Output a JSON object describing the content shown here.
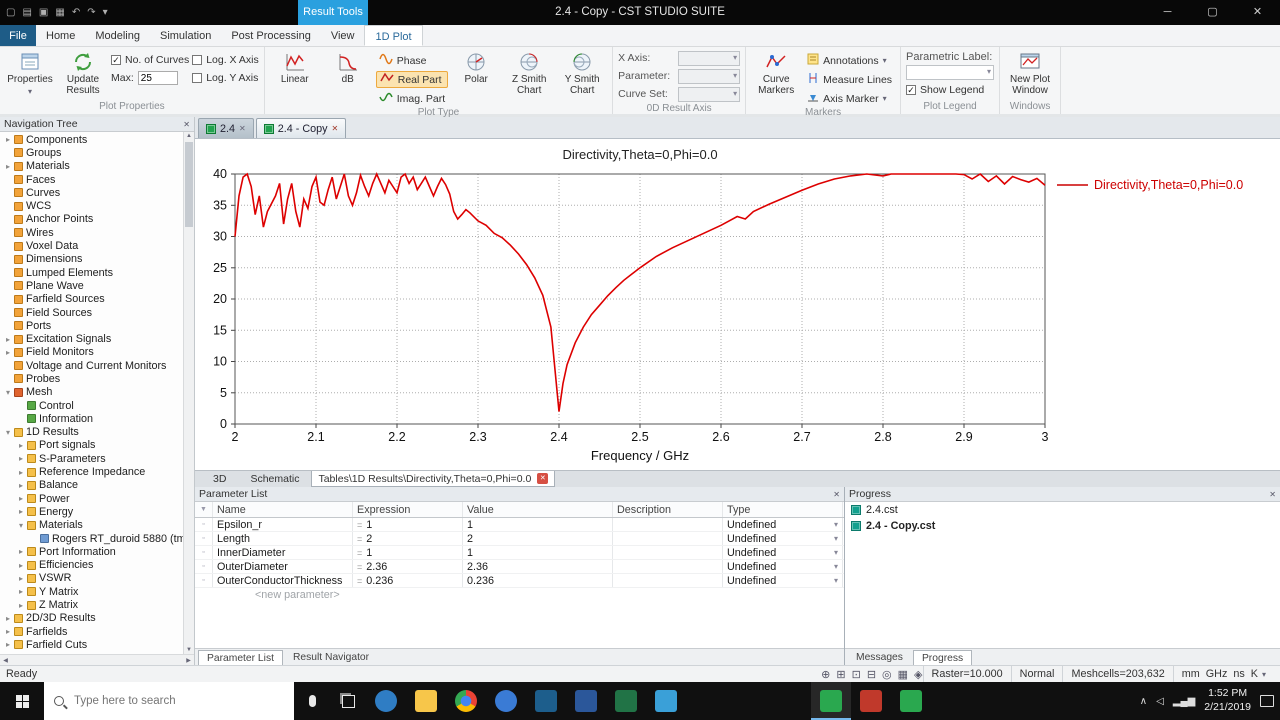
{
  "titlebar": {
    "context_tab": "Result Tools",
    "title": "2.4 - Copy - CST STUDIO SUITE"
  },
  "ribbon": {
    "tabs": [
      "File",
      "Home",
      "Modeling",
      "Simulation",
      "Post Processing",
      "View",
      "1D Plot"
    ],
    "active_tab": "1D Plot",
    "groups": {
      "plot_properties": {
        "label": "Plot Properties",
        "properties": "Properties",
        "update_results": "Update Results",
        "no_of_curves": "No. of Curves",
        "max": "Max:",
        "max_value": "25",
        "log_x": "Log. X Axis",
        "log_y": "Log. Y Axis"
      },
      "plot_type": {
        "label": "Plot Type",
        "linear": "Linear",
        "db": "dB",
        "phase": "Phase",
        "real_part": "Real Part",
        "imag_part": "Imag. Part",
        "polar": "Polar",
        "z_smith": "Z Smith Chart",
        "y_smith": "Y Smith Chart"
      },
      "result_axis": {
        "label": "0D Result Axis",
        "x_axis": "X Axis:",
        "parameter": "Parameter:",
        "curve_set": "Curve Set:"
      },
      "markers": {
        "label": "Markers",
        "curve_markers": "Curve Markers",
        "annotations": "Annotations",
        "measure_lines": "Measure Lines",
        "axis_marker": "Axis Marker"
      },
      "plot_legend": {
        "label": "Plot Legend",
        "parametric_label": "Parametric Label:",
        "show_legend": "Show Legend"
      },
      "windows": {
        "label": "Windows",
        "new_plot_window": "New Plot Window"
      }
    }
  },
  "navigation_tree": {
    "title": "Navigation Tree",
    "items": [
      {
        "label": "Components",
        "level": 0,
        "state": "collapsed",
        "icon": "cube"
      },
      {
        "label": "Groups",
        "level": 0,
        "state": "none",
        "icon": "cube"
      },
      {
        "label": "Materials",
        "level": 0,
        "state": "collapsed",
        "icon": "cube"
      },
      {
        "label": "Faces",
        "level": 0,
        "state": "none",
        "icon": "cube"
      },
      {
        "label": "Curves",
        "level": 0,
        "state": "none",
        "icon": "cube"
      },
      {
        "label": "WCS",
        "level": 0,
        "state": "none",
        "icon": "cube"
      },
      {
        "label": "Anchor Points",
        "level": 0,
        "state": "none",
        "icon": "cube"
      },
      {
        "label": "Wires",
        "level": 0,
        "state": "none",
        "icon": "cube"
      },
      {
        "label": "Voxel Data",
        "level": 0,
        "state": "none",
        "icon": "cube"
      },
      {
        "label": "Dimensions",
        "level": 0,
        "state": "none",
        "icon": "cube"
      },
      {
        "label": "Lumped Elements",
        "level": 0,
        "state": "none",
        "icon": "cube"
      },
      {
        "label": "Plane Wave",
        "level": 0,
        "state": "none",
        "icon": "cube"
      },
      {
        "label": "Farfield Sources",
        "level": 0,
        "state": "none",
        "icon": "cube"
      },
      {
        "label": "Field Sources",
        "level": 0,
        "state": "none",
        "icon": "cube"
      },
      {
        "label": "Ports",
        "level": 0,
        "state": "none",
        "icon": "cube"
      },
      {
        "label": "Excitation Signals",
        "level": 0,
        "state": "collapsed",
        "icon": "cube"
      },
      {
        "label": "Field Monitors",
        "level": 0,
        "state": "collapsed",
        "icon": "cube"
      },
      {
        "label": "Voltage and Current Monitors",
        "level": 0,
        "state": "none",
        "icon": "cube"
      },
      {
        "label": "Probes",
        "level": 0,
        "state": "none",
        "icon": "cube"
      },
      {
        "label": "Mesh",
        "level": 0,
        "state": "expanded",
        "icon": "mesh"
      },
      {
        "label": "Control",
        "level": 1,
        "state": "none",
        "icon": "green"
      },
      {
        "label": "Information",
        "level": 1,
        "state": "none",
        "icon": "green"
      },
      {
        "label": "1D Results",
        "level": 0,
        "state": "expanded",
        "icon": "folder"
      },
      {
        "label": "Port signals",
        "level": 1,
        "state": "collapsed",
        "icon": "folder"
      },
      {
        "label": "S-Parameters",
        "level": 1,
        "state": "collapsed",
        "icon": "folder"
      },
      {
        "label": "Reference Impedance",
        "level": 1,
        "state": "collapsed",
        "icon": "folder"
      },
      {
        "label": "Balance",
        "level": 1,
        "state": "collapsed",
        "icon": "folder"
      },
      {
        "label": "Power",
        "level": 1,
        "state": "collapsed",
        "icon": "folder"
      },
      {
        "label": "Energy",
        "level": 1,
        "state": "collapsed",
        "icon": "folder"
      },
      {
        "label": "Materials",
        "level": 1,
        "state": "expanded",
        "icon": "folder"
      },
      {
        "label": "Rogers RT_duroid 5880 (tm",
        "level": 2,
        "state": "none",
        "icon": "blue"
      },
      {
        "label": "Port Information",
        "level": 1,
        "state": "collapsed",
        "icon": "folder"
      },
      {
        "label": "Efficiencies",
        "level": 1,
        "state": "collapsed",
        "icon": "folder"
      },
      {
        "label": "VSWR",
        "level": 1,
        "state": "collapsed",
        "icon": "folder"
      },
      {
        "label": "Y Matrix",
        "level": 1,
        "state": "collapsed",
        "icon": "folder"
      },
      {
        "label": "Z Matrix",
        "level": 1,
        "state": "collapsed",
        "icon": "folder"
      },
      {
        "label": "2D/3D Results",
        "level": 0,
        "state": "collapsed",
        "icon": "folder"
      },
      {
        "label": "Farfields",
        "level": 0,
        "state": "collapsed",
        "icon": "folder"
      },
      {
        "label": "Farfield Cuts",
        "level": 0,
        "state": "collapsed",
        "icon": "folder"
      }
    ]
  },
  "document_tabs": [
    {
      "label": "2.4",
      "active": false
    },
    {
      "label": "2.4 - Copy",
      "active": true
    }
  ],
  "chart_data": {
    "type": "line",
    "title": "Directivity,Theta=0,Phi=0.0",
    "xlabel": "Frequency / GHz",
    "ylabel": "",
    "xlim": [
      2,
      3
    ],
    "ylim": [
      0,
      40
    ],
    "x_ticks": [
      2,
      2.1,
      2.2,
      2.3,
      2.4,
      2.5,
      2.6,
      2.7,
      2.8,
      2.9,
      3
    ],
    "y_ticks": [
      0,
      5,
      10,
      15,
      20,
      25,
      30,
      35,
      40
    ],
    "grid": "dotted",
    "legend": {
      "label": "Directivity,Theta=0,Phi=0.0",
      "color": "#cc0000",
      "position": "right"
    },
    "series": [
      {
        "name": "Directivity,Theta=0,Phi=0.0",
        "color": "#dd0000",
        "points": [
          [
            2.0,
            30
          ],
          [
            2.005,
            36.5
          ],
          [
            2.01,
            39.5
          ],
          [
            2.015,
            40
          ],
          [
            2.02,
            38
          ],
          [
            2.025,
            33.5
          ],
          [
            2.03,
            36.5
          ],
          [
            2.035,
            31.5
          ],
          [
            2.04,
            34
          ],
          [
            2.05,
            36.5
          ],
          [
            2.055,
            38.5
          ],
          [
            2.06,
            32
          ],
          [
            2.065,
            36
          ],
          [
            2.07,
            38.5
          ],
          [
            2.075,
            34
          ],
          [
            2.08,
            31.5
          ],
          [
            2.085,
            36
          ],
          [
            2.09,
            34.5
          ],
          [
            2.095,
            38
          ],
          [
            2.1,
            39.5
          ],
          [
            2.105,
            35.5
          ],
          [
            2.11,
            35
          ],
          [
            2.115,
            37.5
          ],
          [
            2.12,
            39.5
          ],
          [
            2.125,
            36
          ],
          [
            2.13,
            38
          ],
          [
            2.135,
            40
          ],
          [
            2.14,
            36.5
          ],
          [
            2.145,
            35
          ],
          [
            2.15,
            37
          ],
          [
            2.155,
            39.8
          ],
          [
            2.16,
            38
          ],
          [
            2.165,
            36.5
          ],
          [
            2.17,
            38.5
          ],
          [
            2.175,
            40
          ],
          [
            2.18,
            38.5
          ],
          [
            2.185,
            37
          ],
          [
            2.19,
            39
          ],
          [
            2.195,
            38
          ],
          [
            2.2,
            37
          ],
          [
            2.205,
            39.5
          ],
          [
            2.21,
            40
          ],
          [
            2.215,
            38.5
          ],
          [
            2.22,
            39.5
          ],
          [
            2.225,
            37.5
          ],
          [
            2.23,
            38.5
          ],
          [
            2.235,
            39.5
          ],
          [
            2.24,
            38
          ],
          [
            2.245,
            36.5
          ],
          [
            2.25,
            38
          ],
          [
            2.255,
            39.3
          ],
          [
            2.26,
            38.3
          ],
          [
            2.265,
            36.8
          ],
          [
            2.27,
            34
          ],
          [
            2.275,
            32.8
          ],
          [
            2.28,
            33.5
          ],
          [
            2.285,
            34.3
          ],
          [
            2.29,
            33.8
          ],
          [
            2.3,
            32.5
          ],
          [
            2.31,
            31.8
          ],
          [
            2.32,
            30.5
          ],
          [
            2.33,
            29.8
          ],
          [
            2.34,
            28.6
          ],
          [
            2.35,
            27.2
          ],
          [
            2.36,
            25.5
          ],
          [
            2.37,
            23.4
          ],
          [
            2.38,
            20.6
          ],
          [
            2.39,
            15.5
          ],
          [
            2.4,
            2
          ],
          [
            2.405,
            6.5
          ],
          [
            2.41,
            9.5
          ],
          [
            2.42,
            13
          ],
          [
            2.43,
            15.5
          ],
          [
            2.44,
            17.5
          ],
          [
            2.45,
            19
          ],
          [
            2.46,
            20.5
          ],
          [
            2.47,
            21.8
          ],
          [
            2.48,
            23
          ],
          [
            2.49,
            24
          ],
          [
            2.5,
            25
          ],
          [
            2.52,
            26.8
          ],
          [
            2.54,
            28.2
          ],
          [
            2.56,
            29.4
          ],
          [
            2.58,
            30.6
          ],
          [
            2.6,
            31.8
          ],
          [
            2.61,
            32.5
          ],
          [
            2.62,
            33.2
          ],
          [
            2.63,
            32.8
          ],
          [
            2.64,
            34
          ],
          [
            2.66,
            35.2
          ],
          [
            2.68,
            36.3
          ],
          [
            2.7,
            37.4
          ],
          [
            2.72,
            38.4
          ],
          [
            2.74,
            39.2
          ],
          [
            2.76,
            39.7
          ],
          [
            2.78,
            40
          ],
          [
            2.8,
            39.7
          ],
          [
            2.81,
            40
          ],
          [
            2.83,
            40
          ],
          [
            2.85,
            40
          ],
          [
            2.87,
            40
          ],
          [
            2.89,
            40
          ],
          [
            2.9,
            39.9
          ],
          [
            2.91,
            39.2
          ],
          [
            2.92,
            40
          ],
          [
            2.93,
            38.8
          ],
          [
            2.94,
            39.7
          ],
          [
            2.95,
            38.4
          ],
          [
            2.96,
            39.6
          ],
          [
            2.97,
            39.1
          ],
          [
            2.98,
            38.7
          ],
          [
            2.99,
            39.3
          ],
          [
            3.0,
            38.2
          ]
        ]
      }
    ]
  },
  "view_tabs": [
    {
      "label": "3D",
      "active": false
    },
    {
      "label": "Schematic",
      "active": false
    },
    {
      "label": "Tables\\1D Results\\Directivity,Theta=0,Phi=0.0",
      "active": true,
      "closable": true
    }
  ],
  "parameter_list": {
    "title": "Parameter List",
    "expression_prefix": "=",
    "columns": [
      "Name",
      "Expression",
      "Value",
      "Description",
      "Type"
    ],
    "rows": [
      {
        "name": "Epsilon_r",
        "expression": "1",
        "value": "1",
        "description": "",
        "type": "Undefined"
      },
      {
        "name": "Length",
        "expression": "2",
        "value": "2",
        "description": "",
        "type": "Undefined"
      },
      {
        "name": "InnerDiameter",
        "expression": "1",
        "value": "1",
        "description": "",
        "type": "Undefined"
      },
      {
        "name": "OuterDiameter",
        "expression": "2.36",
        "value": "2.36",
        "description": "",
        "type": "Undefined"
      },
      {
        "name": "OuterConductorThickness",
        "expression": "0.236",
        "value": "0.236",
        "description": "",
        "type": "Undefined"
      }
    ],
    "new_parameter": "<new parameter>",
    "bottom_tabs": [
      "Parameter List",
      "Result Navigator"
    ],
    "active_bottom_tab": "Parameter List"
  },
  "progress_panel": {
    "title": "Progress",
    "files": [
      {
        "label": "2.4.cst",
        "bold": false
      },
      {
        "label": "2.4 - Copy.cst",
        "bold": true
      }
    ],
    "bottom_tabs": [
      "Messages",
      "Progress"
    ],
    "active_bottom_tab": "Progress"
  },
  "status_bar": {
    "ready": "Ready",
    "raster": "Raster=10.000",
    "mode": "Normal",
    "meshcells": "Meshcells=203,632",
    "units": "mm  GHz  ns  K"
  },
  "taskbar": {
    "search_placeholder": "Type here to search",
    "clock_time": "1:52 PM",
    "clock_date": "2/21/2019"
  }
}
